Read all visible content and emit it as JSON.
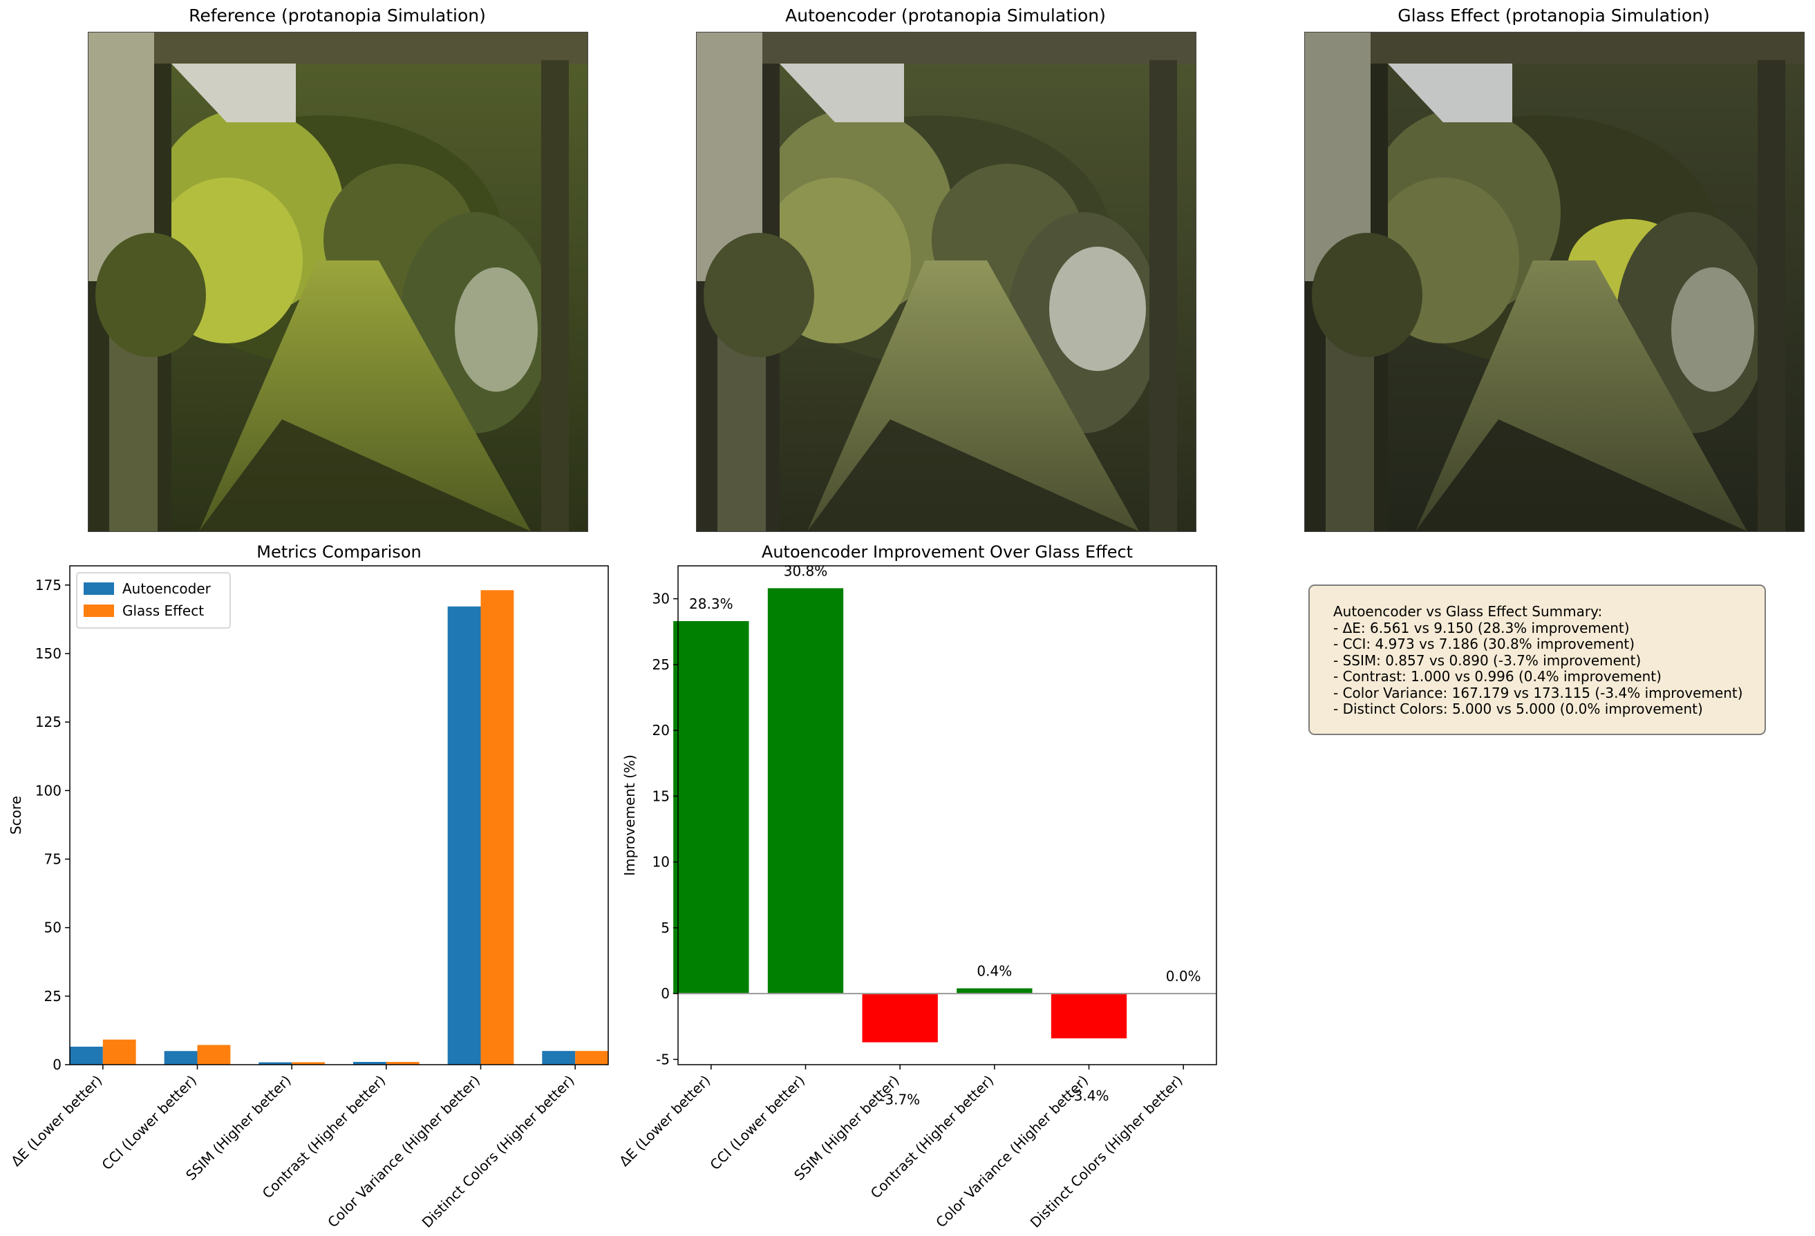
{
  "panels": {
    "reference_title": "Reference (protanopia Simulation)",
    "autoencoder_title": "Autoencoder (protanopia Simulation)",
    "glass_title": "Glass Effect (protanopia Simulation)"
  },
  "chart_data": [
    {
      "type": "bar",
      "title": "Metrics Comparison",
      "xlabel": "",
      "ylabel": "Score",
      "categories": [
        "ΔE (Lower better)",
        "CCI (Lower better)",
        "SSIM (Higher better)",
        "Contrast (Higher better)",
        "Color Variance (Higher better)",
        "Distinct Colors (Higher better)"
      ],
      "series": [
        {
          "name": "Autoencoder",
          "color": "#1f77b4",
          "values": [
            6.561,
            4.973,
            0.857,
            1.0,
            167.179,
            5.0
          ]
        },
        {
          "name": "Glass Effect",
          "color": "#ff7f0e",
          "values": [
            9.15,
            7.186,
            0.89,
            0.996,
            173.115,
            5.0
          ]
        }
      ],
      "ylim": [
        0,
        182
      ],
      "yticks": [
        0,
        25,
        50,
        75,
        100,
        125,
        150,
        175
      ],
      "legend": "top-left",
      "grid": false
    },
    {
      "type": "bar",
      "title": "Autoencoder Improvement Over Glass Effect",
      "xlabel": "",
      "ylabel": "Improvement (%)",
      "categories": [
        "ΔE (Lower better)",
        "CCI (Lower better)",
        "SSIM (Higher better)",
        "Contrast (Higher better)",
        "Color Variance (Higher better)",
        "Distinct Colors (Higher better)"
      ],
      "values": [
        28.3,
        30.8,
        -3.7,
        0.4,
        -3.4,
        0.0
      ],
      "labels": [
        "28.3%",
        "30.8%",
        "-3.7%",
        "0.4%",
        "-3.4%",
        "0.0%"
      ],
      "positive_color": "#008000",
      "negative_color": "#ff0000",
      "ylim": [
        -5.4,
        32.5
      ],
      "yticks": [
        -5,
        0,
        5,
        10,
        15,
        20,
        25,
        30
      ],
      "grid": false
    }
  ],
  "summary": {
    "lines": [
      "Autoencoder vs Glass Effect Summary:",
      "- ΔE: 6.561 vs 9.150 (28.3% improvement)",
      "- CCI: 4.973 vs 7.186 (30.8% improvement)",
      "- SSIM: 0.857 vs 0.890 (-3.7% improvement)",
      "- Contrast: 1.000 vs 0.996 (0.4% improvement)",
      "- Color Variance: 167.179 vs 173.115 (-3.4% improvement)",
      "- Distinct Colors: 5.000 vs 5.000 (0.0% improvement)"
    ]
  }
}
